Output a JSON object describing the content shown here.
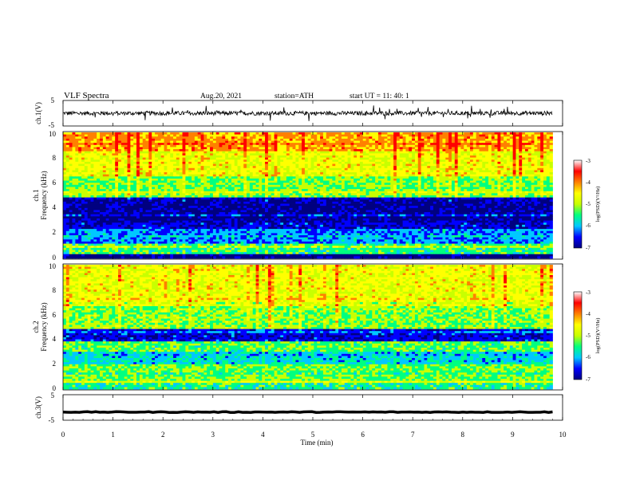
{
  "header": {
    "title": "VLF  Spectra",
    "date": "Aug.20, 2021",
    "station": "station=ATH",
    "start": "start  UT  =    11: 40: 1"
  },
  "chart_data": [
    {
      "type": "line",
      "panel": "ch1-waveform",
      "ylabel": "ch.1(V)",
      "ylim": [
        -5,
        5
      ],
      "yticks": [
        "5",
        "-5"
      ],
      "xlim": [
        0,
        10
      ],
      "baseline": 0,
      "noise_amplitude": 0.8,
      "spike_amplitude": 2.5,
      "color": "#000000"
    },
    {
      "type": "heatmap",
      "panel": "ch1-spectrogram",
      "ylabel": "Frequency  (kHz)",
      "channel_label": "ch.1",
      "ylim": [
        0,
        10
      ],
      "yticks": [
        "0",
        "2",
        "4",
        "6",
        "8",
        "10"
      ],
      "xlim": [
        0,
        9.8
      ],
      "colorbar": {
        "label": "log(PSD)(V²/Hz)",
        "range": [
          -7,
          -3
        ],
        "ticks": [
          "-3",
          "-4",
          "-5",
          "-6",
          "-7"
        ]
      },
      "bands_khz": [
        {
          "from": 0.0,
          "to": 0.3,
          "log_psd": -6.8
        },
        {
          "from": 0.3,
          "to": 1.2,
          "log_psd": -5.2
        },
        {
          "from": 1.2,
          "to": 2.3,
          "log_psd": -5.9
        },
        {
          "from": 2.3,
          "to": 3.0,
          "log_psd": -6.4
        },
        {
          "from": 3.0,
          "to": 4.8,
          "log_psd": -6.7
        },
        {
          "from": 4.8,
          "to": 6.5,
          "log_psd": -5.0
        },
        {
          "from": 6.5,
          "to": 8.5,
          "log_psd": -4.4
        },
        {
          "from": 8.5,
          "to": 10.0,
          "log_psd": -3.9
        }
      ]
    },
    {
      "type": "heatmap",
      "panel": "ch2-spectrogram",
      "ylabel": "Frequency  (kHz)",
      "channel_label": "ch.2",
      "ylim": [
        0,
        10
      ],
      "yticks": [
        "0",
        "2",
        "4",
        "6",
        "8",
        "10"
      ],
      "xlim": [
        0,
        9.8
      ],
      "colorbar": {
        "label": "log(PSD)(V²/Hz)",
        "range": [
          -7,
          -3
        ],
        "ticks": [
          "-3",
          "-4",
          "-5",
          "-6",
          "-7"
        ]
      },
      "bands_khz": [
        {
          "from": 0.0,
          "to": 0.5,
          "log_psd": -5.3
        },
        {
          "from": 0.5,
          "to": 2.0,
          "log_psd": -5.0
        },
        {
          "from": 2.0,
          "to": 3.0,
          "log_psd": -5.6
        },
        {
          "from": 3.0,
          "to": 3.8,
          "log_psd": -5.1
        },
        {
          "from": 3.8,
          "to": 4.8,
          "log_psd": -6.4
        },
        {
          "from": 4.8,
          "to": 7.0,
          "log_psd": -4.9
        },
        {
          "from": 7.0,
          "to": 10.0,
          "log_psd": -4.4
        }
      ]
    },
    {
      "type": "line",
      "panel": "ch3-waveform",
      "ylabel": "ch.3(V)",
      "ylim": [
        -5,
        5
      ],
      "yticks": [
        "5",
        "-5"
      ],
      "xlim": [
        0,
        10
      ],
      "baseline": -1.8,
      "noise_amplitude": 0.15,
      "color": "#000000"
    }
  ],
  "xaxis": {
    "label": "Time  (min)",
    "ticks": [
      "0",
      "1",
      "2",
      "3",
      "4",
      "5",
      "6",
      "7",
      "8",
      "9",
      "10"
    ],
    "range": [
      0,
      10
    ]
  },
  "colors": {
    "jet": [
      "#000080",
      "#0000ff",
      "#00c8ff",
      "#00ff80",
      "#c8ff00",
      "#ffff00",
      "#ff8000",
      "#ff0000",
      "#ffffff"
    ]
  }
}
